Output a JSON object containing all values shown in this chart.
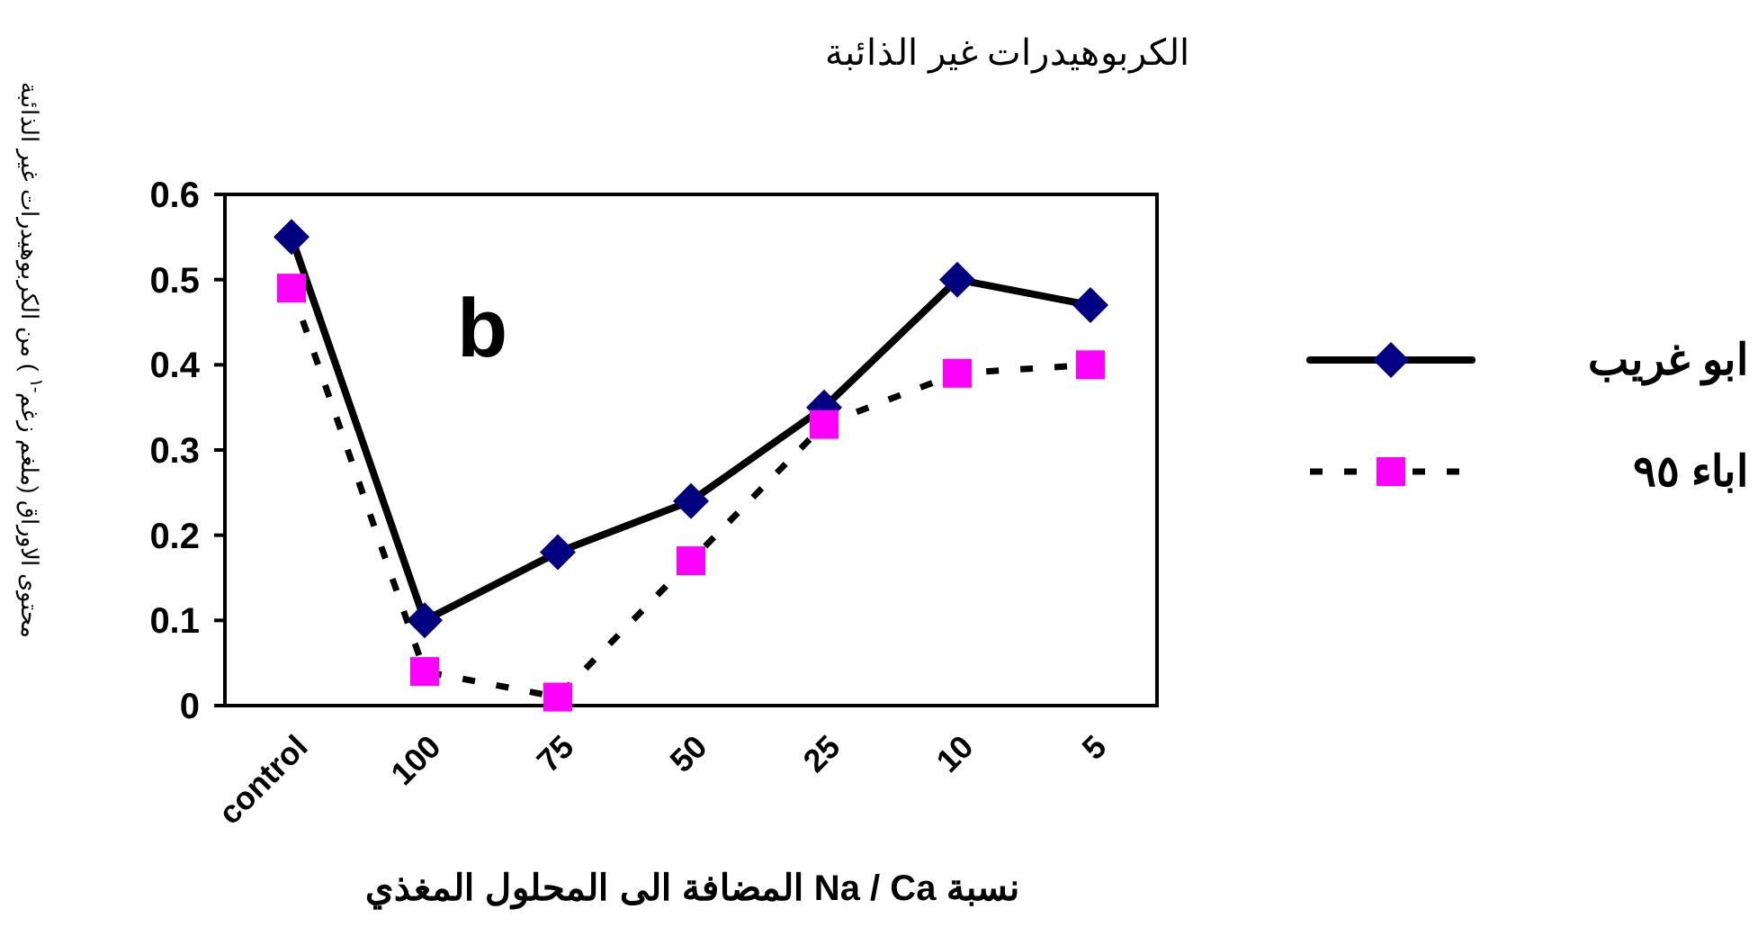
{
  "chart_data": {
    "type": "line",
    "title": "الكربوهيدرات  غير الذائبة",
    "xlabel": "نسبة  Na / Ca المضافة الى المحلول المغذي",
    "ylabel": "محتوى الاوراق (ملغم زغم$^{-١}$ ) من الكربوهيدرات غير الذائبة",
    "annotations": [
      "b"
    ],
    "categories": [
      "control",
      "100",
      "75",
      "50",
      "25",
      "10",
      "5"
    ],
    "ylim": [
      0,
      0.6
    ],
    "yticks": [
      0,
      0.1,
      0.2,
      0.3,
      0.4,
      0.5,
      0.6
    ],
    "grid": false,
    "legend": "right",
    "series": [
      {
        "name": "ابو غريب",
        "color": "#000080",
        "marker": "diamond",
        "line_style": "solid",
        "values": [
          0.55,
          0.1,
          0.18,
          0.24,
          0.35,
          0.5,
          0.47
        ]
      },
      {
        "name": "اباء ٩٥",
        "color": "#ff00ff",
        "marker": "square",
        "line_style": "dashed",
        "values": [
          0.49,
          0.04,
          0.01,
          0.17,
          0.33,
          0.39,
          0.4
        ]
      }
    ]
  }
}
